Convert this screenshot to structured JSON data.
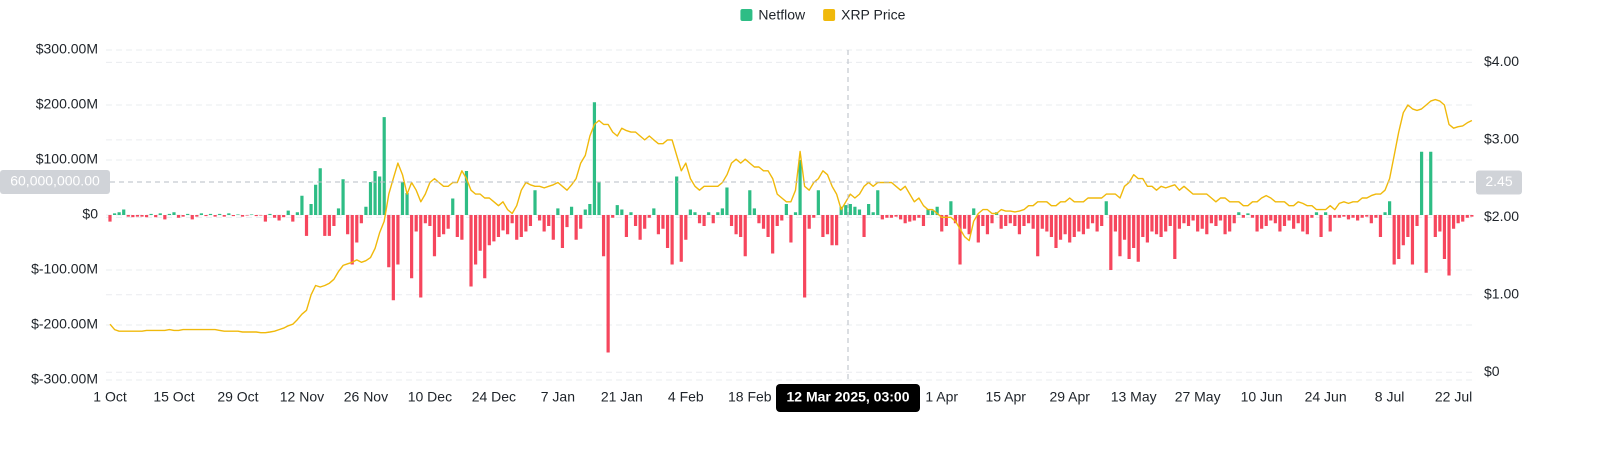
{
  "chart_data": {
    "type": "bar",
    "categories": [
      "1 Oct",
      null,
      null,
      null,
      null,
      null,
      null,
      null,
      null,
      null,
      null,
      null,
      null,
      null,
      "15 Oct",
      null,
      null,
      null,
      null,
      null,
      null,
      null,
      null,
      null,
      null,
      null,
      null,
      null,
      "29 Oct",
      null,
      null,
      null,
      null,
      null,
      null,
      null,
      null,
      null,
      null,
      null,
      null,
      null,
      "12 Nov",
      null,
      null,
      null,
      null,
      null,
      null,
      null,
      null,
      null,
      null,
      null,
      null,
      null,
      "26 Nov",
      null,
      null,
      null,
      null,
      null,
      null,
      null,
      null,
      null,
      null,
      null,
      null,
      null,
      "10 Dec",
      null,
      null,
      null,
      null,
      null,
      null,
      null,
      null,
      null,
      null,
      null,
      null,
      null,
      "24 Dec",
      null,
      null,
      null,
      null,
      null,
      null,
      null,
      null,
      null,
      null,
      null,
      null,
      null,
      "7 Jan",
      null,
      null,
      null,
      null,
      null,
      null,
      null,
      null,
      null,
      null,
      null,
      null,
      null,
      "21 Jan",
      null,
      null,
      null,
      null,
      null,
      null,
      null,
      null,
      null,
      null,
      null,
      null,
      null,
      "4 Feb",
      null,
      null,
      null,
      null,
      null,
      null,
      null,
      null,
      null,
      null,
      null,
      null,
      null,
      "18 Feb",
      null,
      null,
      null,
      null,
      null,
      null,
      null,
      null,
      null,
      null,
      null,
      null,
      null,
      null,
      null,
      null,
      null,
      null,
      null,
      null,
      null,
      null,
      null,
      null,
      null,
      null,
      null,
      null,
      null,
      null,
      null,
      null,
      null,
      null,
      null,
      null,
      null,
      null,
      null,
      null,
      null,
      "1 Apr",
      null,
      null,
      null,
      null,
      null,
      null,
      null,
      null,
      null,
      null,
      null,
      null,
      null,
      "15 Apr",
      null,
      null,
      null,
      null,
      null,
      null,
      null,
      null,
      null,
      null,
      null,
      null,
      null,
      "29 Apr",
      null,
      null,
      null,
      null,
      null,
      null,
      null,
      null,
      null,
      null,
      null,
      null,
      null,
      "13 May",
      null,
      null,
      null,
      null,
      null,
      null,
      null,
      null,
      null,
      null,
      null,
      null,
      null,
      "27 May",
      null,
      null,
      null,
      null,
      null,
      null,
      null,
      null,
      null,
      null,
      null,
      null,
      null,
      "10 Jun",
      null,
      null,
      null,
      null,
      null,
      null,
      null,
      null,
      null,
      null,
      null,
      null,
      null,
      "24 Jun",
      null,
      null,
      null,
      null,
      null,
      null,
      null,
      null,
      null,
      null,
      null,
      null,
      null,
      "8 Jul",
      null,
      null,
      null,
      null,
      null,
      null,
      null,
      null,
      null,
      null,
      null,
      null,
      null,
      "22 Jul",
      null,
      null,
      null,
      null
    ],
    "series": [
      {
        "name": "Netflow",
        "type": "bar",
        "color": "#2ebd85",
        "negative_color": "#f6465d",
        "values": [
          -12,
          3,
          5,
          10,
          -3,
          -4,
          -3,
          -3,
          -4,
          2,
          -4,
          3,
          -8,
          2,
          5,
          -5,
          -3,
          2,
          -8,
          -3,
          3,
          -2,
          2,
          -3,
          2,
          -3,
          3,
          -2,
          1,
          -3,
          -1,
          1,
          -2,
          -1,
          -12,
          2,
          -5,
          -10,
          -4,
          8,
          -12,
          5,
          35,
          -38,
          20,
          55,
          85,
          -38,
          -38,
          -20,
          12,
          65,
          -35,
          -90,
          -50,
          -15,
          15,
          60,
          80,
          70,
          178,
          -95,
          -155,
          -90,
          60,
          40,
          -115,
          -30,
          -150,
          -15,
          -20,
          -75,
          -40,
          -35,
          -25,
          30,
          -40,
          -45,
          80,
          -130,
          -90,
          -65,
          -115,
          -55,
          -48,
          -40,
          -28,
          -35,
          -15,
          -45,
          -40,
          -30,
          -20,
          45,
          -10,
          -30,
          -20,
          -45,
          12,
          -60,
          -22,
          15,
          -45,
          -25,
          10,
          20,
          205,
          60,
          -75,
          -250,
          -5,
          18,
          10,
          -40,
          5,
          -20,
          -45,
          -25,
          -5,
          12,
          -35,
          -25,
          -60,
          -90,
          70,
          -85,
          -45,
          10,
          5,
          -15,
          -20,
          5,
          -15,
          5,
          12,
          50,
          -20,
          -35,
          -40,
          -75,
          45,
          12,
          -15,
          -25,
          -40,
          -70,
          -20,
          -10,
          20,
          -50,
          5,
          100,
          -150,
          -25,
          -5,
          45,
          -40,
          -35,
          -55,
          -55,
          15,
          18,
          20,
          15,
          10,
          -40,
          20,
          5,
          45,
          -8,
          -5,
          -5,
          -3,
          -8,
          -15,
          -12,
          -10,
          -5,
          -20,
          10,
          8,
          15,
          -30,
          -20,
          25,
          -15,
          -90,
          -25,
          -35,
          12,
          -50,
          -20,
          -35,
          -15,
          5,
          -25,
          -20,
          -15,
          -20,
          -35,
          -20,
          -15,
          -25,
          -75,
          -25,
          -30,
          -40,
          -60,
          -45,
          -35,
          -50,
          -40,
          -30,
          -35,
          -25,
          -15,
          -30,
          -20,
          25,
          -100,
          -30,
          -75,
          -45,
          -80,
          -60,
          -85,
          -40,
          -50,
          -30,
          -35,
          -40,
          -30,
          -20,
          -80,
          -25,
          -15,
          -20,
          -10,
          -30,
          -25,
          -35,
          -15,
          -20,
          -10,
          -35,
          -30,
          -15,
          5,
          -5,
          3,
          -5,
          -30,
          -25,
          -20,
          -10,
          -15,
          -30,
          -20,
          -10,
          -25,
          -15,
          -30,
          -35,
          -5,
          5,
          -40,
          5,
          -30,
          -5,
          -5,
          -3,
          -8,
          -5,
          -10,
          -5,
          -3,
          -15,
          -5,
          -40,
          5,
          25,
          -90,
          -80,
          -55,
          -40,
          -90,
          -20,
          115,
          -105,
          115,
          -40,
          -30,
          -80,
          -110,
          -25,
          -15,
          -12,
          -5,
          -3
        ]
      },
      {
        "name": "XRP Price",
        "type": "line",
        "axis": "y2",
        "color": "#f0b90b",
        "values": [
          0.62,
          0.55,
          0.53,
          0.53,
          0.53,
          0.53,
          0.53,
          0.53,
          0.54,
          0.54,
          0.54,
          0.54,
          0.54,
          0.55,
          0.54,
          0.54,
          0.55,
          0.55,
          0.55,
          0.55,
          0.55,
          0.55,
          0.55,
          0.55,
          0.54,
          0.53,
          0.53,
          0.53,
          0.53,
          0.52,
          0.52,
          0.52,
          0.52,
          0.51,
          0.51,
          0.52,
          0.53,
          0.55,
          0.57,
          0.6,
          0.62,
          0.68,
          0.75,
          0.8,
          1.0,
          1.12,
          1.1,
          1.12,
          1.15,
          1.2,
          1.3,
          1.38,
          1.4,
          1.42,
          1.45,
          1.42,
          1.44,
          1.48,
          1.6,
          1.8,
          1.95,
          2.3,
          2.5,
          2.7,
          2.55,
          2.3,
          2.45,
          2.35,
          2.2,
          2.3,
          2.45,
          2.5,
          2.45,
          2.4,
          2.4,
          2.45,
          2.45,
          2.6,
          2.5,
          2.35,
          2.3,
          2.3,
          2.25,
          2.25,
          2.2,
          2.15,
          2.2,
          2.1,
          2.05,
          2.15,
          2.35,
          2.45,
          2.42,
          2.4,
          2.4,
          2.38,
          2.4,
          2.42,
          2.45,
          2.4,
          2.35,
          2.42,
          2.5,
          2.7,
          2.8,
          3.05,
          3.2,
          3.25,
          3.2,
          3.2,
          3.1,
          3.05,
          3.15,
          3.12,
          3.1,
          3.1,
          3.05,
          3.0,
          3.05,
          3.0,
          2.95,
          2.95,
          3.0,
          3.0,
          2.8,
          2.6,
          2.7,
          2.5,
          2.4,
          2.35,
          2.4,
          2.4,
          2.4,
          2.4,
          2.45,
          2.55,
          2.7,
          2.75,
          2.7,
          2.75,
          2.7,
          2.65,
          2.65,
          2.6,
          2.6,
          2.5,
          2.3,
          2.25,
          2.2,
          2.2,
          2.35,
          2.85,
          2.4,
          2.35,
          2.45,
          2.5,
          2.6,
          2.55,
          2.4,
          2.3,
          2.1,
          2.2,
          2.3,
          2.25,
          2.3,
          2.4,
          2.45,
          2.4,
          2.45,
          2.45,
          2.45,
          2.45,
          2.4,
          2.35,
          2.4,
          2.3,
          2.2,
          2.25,
          2.15,
          2.1,
          2.1,
          2.05,
          2.0,
          2.0,
          2.0,
          1.95,
          1.85,
          1.75,
          1.7,
          1.95,
          2.05,
          2.1,
          2.1,
          2.05,
          2.05,
          2.1,
          2.08,
          2.08,
          2.07,
          2.08,
          2.1,
          2.15,
          2.15,
          2.2,
          2.2,
          2.2,
          2.15,
          2.15,
          2.2,
          2.2,
          2.25,
          2.2,
          2.2,
          2.2,
          2.25,
          2.25,
          2.25,
          2.25,
          2.3,
          2.3,
          2.3,
          2.25,
          2.4,
          2.45,
          2.55,
          2.5,
          2.5,
          2.4,
          2.4,
          2.35,
          2.4,
          2.38,
          2.4,
          2.42,
          2.35,
          2.4,
          2.35,
          2.3,
          2.3,
          2.3,
          2.3,
          2.25,
          2.2,
          2.25,
          2.25,
          2.2,
          2.2,
          2.2,
          2.15,
          2.15,
          2.2,
          2.2,
          2.25,
          2.28,
          2.25,
          2.2,
          2.2,
          2.2,
          2.15,
          2.15,
          2.2,
          2.18,
          2.15,
          2.15,
          2.1,
          2.1,
          2.1,
          2.15,
          2.1,
          2.18,
          2.2,
          2.18,
          2.2,
          2.2,
          2.25,
          2.25,
          2.28,
          2.3,
          2.3,
          2.35,
          2.5,
          2.8,
          3.1,
          3.35,
          3.45,
          3.4,
          3.38,
          3.4,
          3.45,
          3.5,
          3.52,
          3.5,
          3.45,
          3.2,
          3.15,
          3.17,
          3.18,
          3.22,
          3.25
        ]
      }
    ],
    "ylim": [
      -300,
      300
    ],
    "yticks": [
      {
        "value": 300,
        "label": "$300.00M"
      },
      {
        "value": 200,
        "label": "$200.00M"
      },
      {
        "value": 100,
        "label": "$100.00M"
      },
      {
        "value": 0,
        "label": "$0"
      },
      {
        "value": -100,
        "label": "$-100.00M"
      },
      {
        "value": -200,
        "label": "$-200.00M"
      },
      {
        "value": -300,
        "label": "$-300.00M"
      }
    ],
    "y2lim": [
      -0.1,
      4.16
    ],
    "y2ticks": [
      {
        "value": 4,
        "label": "$4.00"
      },
      {
        "value": 3,
        "label": "$3.00"
      },
      {
        "value": 2,
        "label": "$2.00"
      },
      {
        "value": 1,
        "label": "$1.00"
      },
      {
        "value": 0,
        "label": "$0"
      }
    ],
    "grid": true,
    "legend": "top",
    "crosshair": {
      "x_label": "12 Mar 2025, 03:00",
      "y": {
        "value": 60,
        "label": "60,000,000.00"
      },
      "y2": 2.45
    }
  }
}
